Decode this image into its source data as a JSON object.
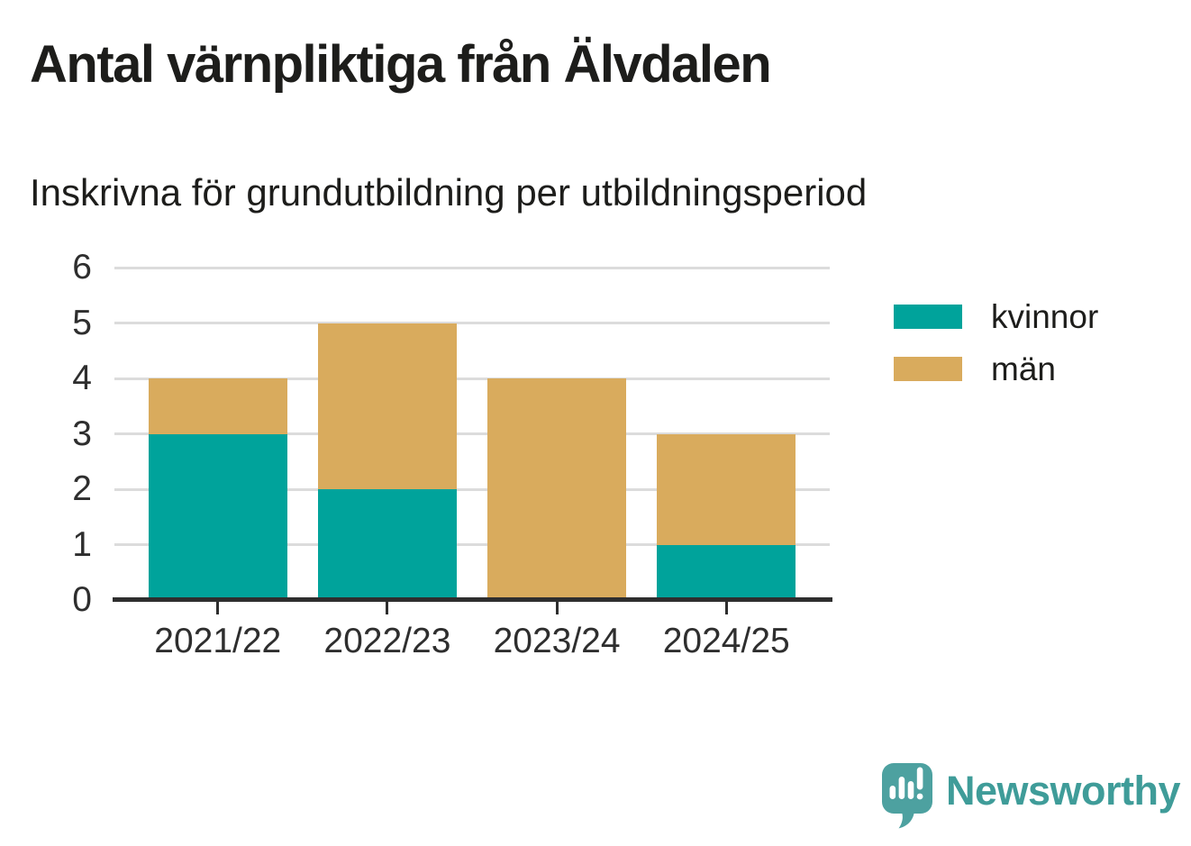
{
  "chart_data": {
    "type": "bar",
    "stacked": true,
    "title": "Antal värnpliktiga från Älvdalen",
    "subtitle": "Inskrivna för grundutbildning per utbildningsperiod",
    "categories": [
      "2021/22",
      "2022/23",
      "2023/24",
      "2024/25"
    ],
    "series": [
      {
        "name": "kvinnor",
        "color": "#00a39b",
        "values": [
          3,
          2,
          0,
          1
        ]
      },
      {
        "name": "män",
        "color": "#d9ab5d",
        "values": [
          1,
          3,
          4,
          2
        ]
      }
    ],
    "stack_totals": [
      4,
      5,
      4,
      3
    ],
    "xlabel": "",
    "ylabel": "",
    "ylim": [
      0,
      6
    ],
    "yticks": [
      0,
      1,
      2,
      3,
      4,
      5,
      6
    ],
    "grid": true,
    "gridline_color": "#dcdcdc",
    "axis_color": "#2e2e2e",
    "legend_position": "right"
  },
  "branding": {
    "name": "Newsworthy",
    "text_color": "#3f9c99",
    "icon": "newsworthy-speech-bubble-bar-chart-icon",
    "icon_color": "#4da1a0"
  },
  "colors": {
    "background": "#ffffff",
    "text": "#1d1d1b"
  }
}
